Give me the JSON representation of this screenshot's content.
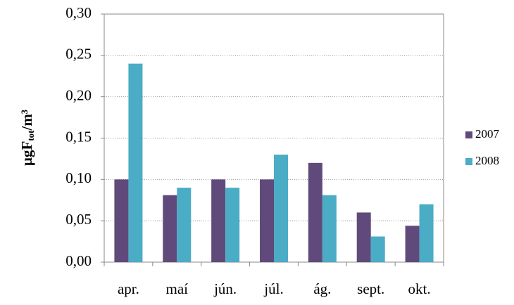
{
  "chart_data": {
    "type": "bar",
    "ylabel": [
      "µgF",
      "tot",
      "/m³"
    ],
    "categories": [
      "apr.",
      "maí",
      "jún.",
      "júl.",
      "ág.",
      "sept.",
      "okt."
    ],
    "series": [
      {
        "name": "2007",
        "color": "#604a7b",
        "values": [
          0.1,
          0.081,
          0.1,
          0.1,
          0.12,
          0.06,
          0.044
        ]
      },
      {
        "name": "2008",
        "color": "#4bacc6",
        "values": [
          0.24,
          0.09,
          0.09,
          0.13,
          0.081,
          0.031,
          0.07
        ]
      }
    ],
    "ylim": [
      0,
      0.3
    ],
    "yticks": [
      {
        "value": 0,
        "label": "0,00"
      },
      {
        "value": 0.05,
        "label": "0,05"
      },
      {
        "value": 0.1,
        "label": "0,10"
      },
      {
        "value": 0.15,
        "label": "0,15"
      },
      {
        "value": 0.2,
        "label": "0,20"
      },
      {
        "value": 0.25,
        "label": "0,25"
      },
      {
        "value": 0.3,
        "label": "0,30"
      }
    ],
    "grid": true,
    "legend": "right"
  }
}
